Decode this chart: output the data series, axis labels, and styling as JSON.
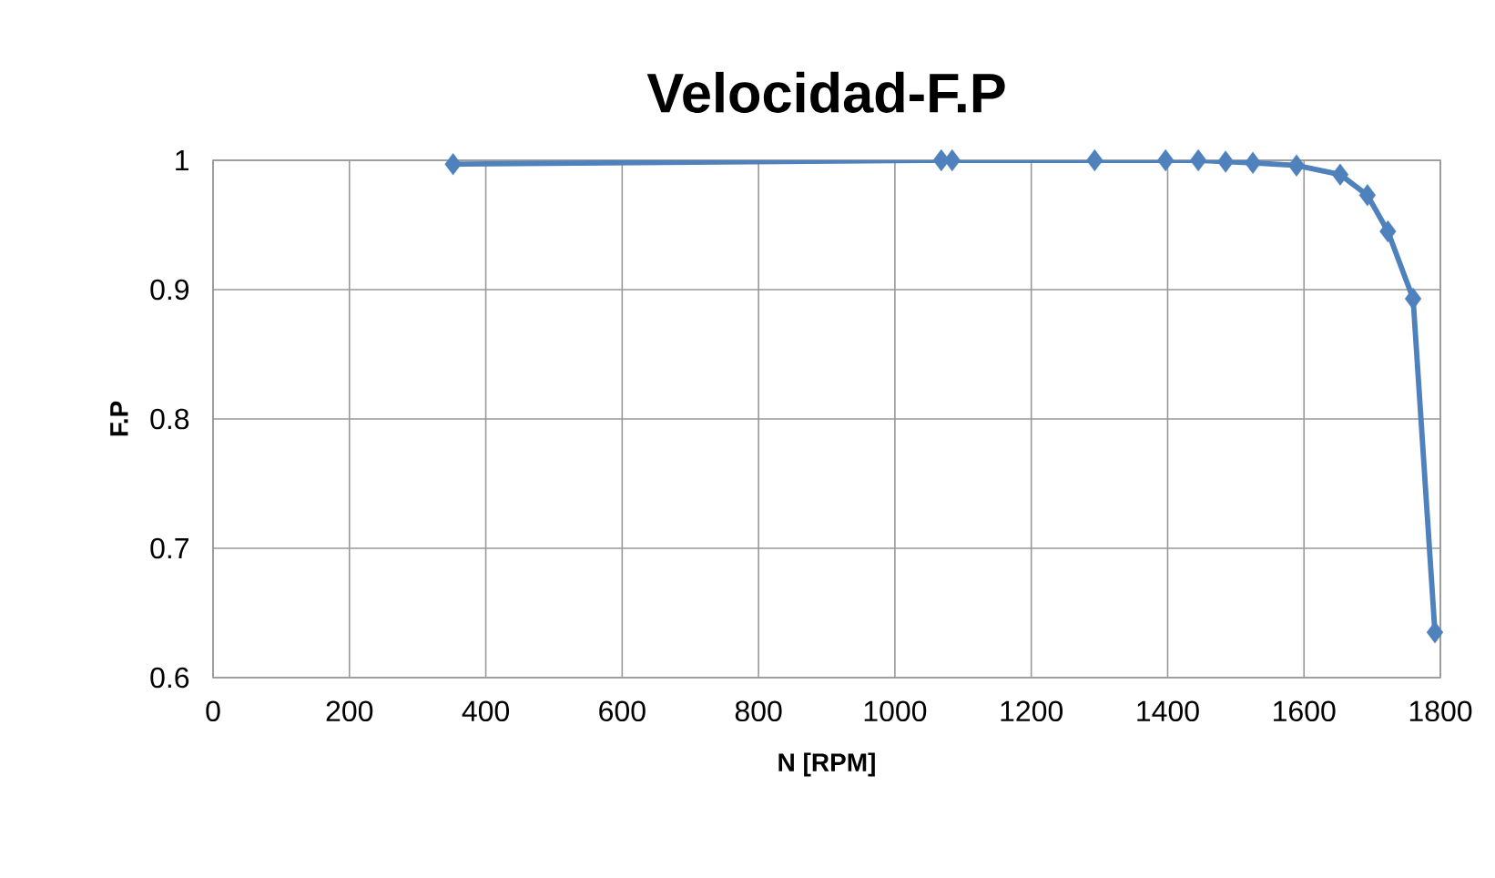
{
  "chart_data": {
    "type": "line",
    "title": "Velocidad-F.P",
    "xlabel": "N [RPM]",
    "ylabel": "F.P",
    "series": [
      {
        "color": "#4f81bd",
        "x": [
          352,
          1068,
          1084,
          1293,
          1397,
          1445,
          1485,
          1525,
          1589,
          1653,
          1693,
          1723,
          1760,
          1792
        ],
        "values": [
          0.997,
          1.0,
          1.0,
          1.0,
          1.0,
          1.0,
          0.999,
          0.998,
          0.996,
          0.989,
          0.973,
          0.945,
          0.893,
          0.635
        ]
      }
    ],
    "xlim": [
      0,
      1800
    ],
    "xticks": [
      0,
      200,
      400,
      600,
      800,
      1000,
      1200,
      1400,
      1600,
      1800
    ],
    "ylim": [
      0.6,
      1
    ],
    "yticks": [
      0.6,
      0.7,
      0.8,
      0.9,
      1
    ],
    "grid": true,
    "marker": "diamond",
    "line_style": "solid"
  }
}
